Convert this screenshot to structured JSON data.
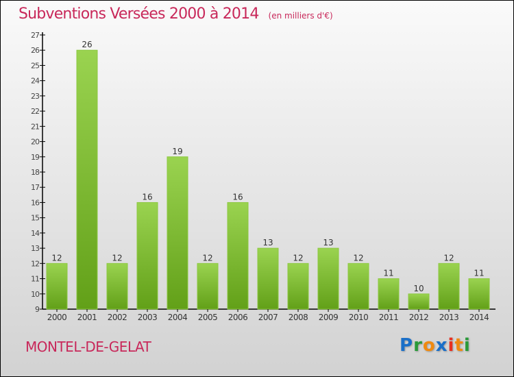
{
  "title": "Subventions Versées 2000 à 2014",
  "unit": "(en milliers d'€)",
  "commune": "MONTEL-DE-GELAT",
  "logo": "Proxiti",
  "chart_data": {
    "type": "bar",
    "title": "Subventions Versées 2000 à 2014",
    "ylabel": "(en milliers d'€)",
    "categories": [
      "2000",
      "2001",
      "2002",
      "2003",
      "2004",
      "2005",
      "2006",
      "2007",
      "2008",
      "2009",
      "2010",
      "2011",
      "2012",
      "2013",
      "2014"
    ],
    "values": [
      12,
      26,
      12,
      16,
      19,
      12,
      16,
      13,
      12,
      13,
      12,
      11,
      10,
      12,
      11
    ],
    "ylim": [
      9,
      27
    ],
    "yticks": [
      9,
      10,
      11,
      12,
      13,
      14,
      15,
      16,
      17,
      18,
      19,
      20,
      21,
      22,
      23,
      24,
      25,
      26,
      27
    ],
    "bar_color": "#7ab82e",
    "grid": false
  }
}
